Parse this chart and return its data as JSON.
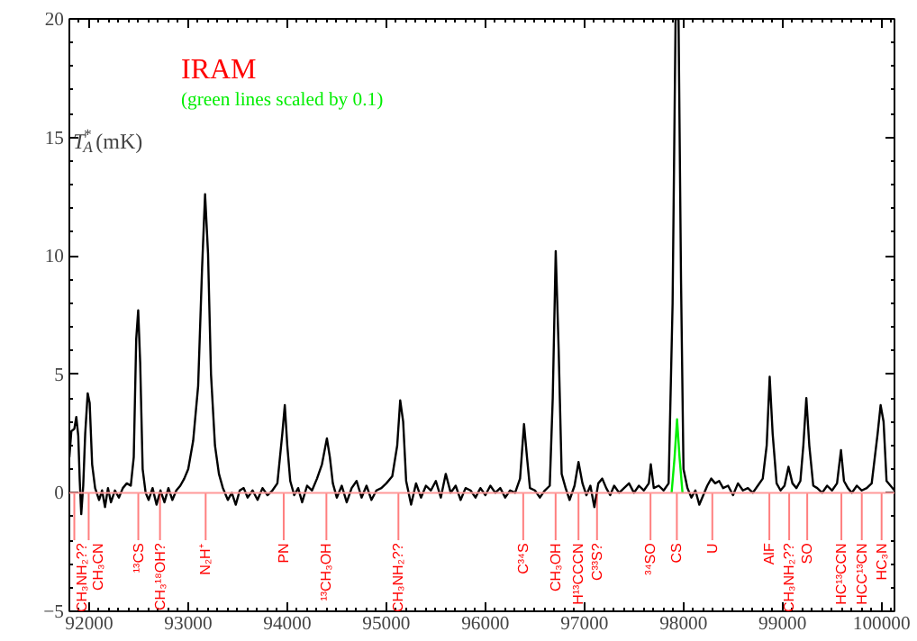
{
  "chart_data": {
    "type": "line",
    "ylabel": "T$_{A}$$^{*}$ (mK)",
    "annotations": [
      "IRAM",
      "(green lines scaled by 0.1)"
    ],
    "xlim": [
      91800,
      100130
    ],
    "ylim": [
      -5,
      20
    ],
    "xticks": [
      92000,
      93000,
      94000,
      95000,
      96000,
      97000,
      98000,
      99000,
      100000
    ],
    "yticks": [
      -5,
      0,
      5,
      10,
      15,
      20
    ],
    "grid": false,
    "marker": "none",
    "line_style": "solid",
    "series": [
      {
        "color": "#000000",
        "x": [
          91800,
          91820,
          91850,
          91870,
          91890,
          91905,
          91920,
          91940,
          91960,
          91985,
          92005,
          92030,
          92060,
          92100,
          92130,
          92160,
          92190,
          92220,
          92260,
          92300,
          92340,
          92380,
          92420,
          92450,
          92475,
          92495,
          92515,
          92540,
          92570,
          92600,
          92640,
          92680,
          92720,
          92760,
          92800,
          92840,
          92880,
          92920,
          92960,
          93000,
          93050,
          93100,
          93140,
          93170,
          93200,
          93230,
          93270,
          93310,
          93350,
          93400,
          93440,
          93480,
          93520,
          93560,
          93600,
          93650,
          93700,
          93750,
          93800,
          93850,
          93900,
          93950,
          93975,
          94000,
          94030,
          94070,
          94110,
          94150,
          94200,
          94250,
          94300,
          94350,
          94400,
          94430,
          94460,
          94500,
          94550,
          94600,
          94650,
          94700,
          94750,
          94800,
          94850,
          94900,
          94950,
          95000,
          95060,
          95110,
          95140,
          95170,
          95200,
          95250,
          95300,
          95350,
          95400,
          95450,
          95500,
          95550,
          95600,
          95650,
          95700,
          95750,
          95800,
          95850,
          95900,
          95950,
          96000,
          96050,
          96100,
          96150,
          96200,
          96250,
          96300,
          96350,
          96390,
          96420,
          96450,
          96500,
          96550,
          96600,
          96650,
          96680,
          96710,
          96740,
          96770,
          96810,
          96850,
          96900,
          96940,
          96980,
          97020,
          97060,
          97100,
          97140,
          97180,
          97220,
          97260,
          97300,
          97350,
          97400,
          97450,
          97500,
          97550,
          97600,
          97650,
          97670,
          97700,
          97750,
          97800,
          97850,
          97890,
          97920,
          97950,
          97975,
          98000,
          98040,
          98080,
          98120,
          98160,
          98200,
          98240,
          98280,
          98320,
          98360,
          98400,
          98450,
          98500,
          98550,
          98600,
          98650,
          98700,
          98750,
          98800,
          98840,
          98870,
          98900,
          98940,
          98980,
          99020,
          99060,
          99100,
          99140,
          99180,
          99210,
          99240,
          99270,
          99310,
          99350,
          99400,
          99450,
          99500,
          99550,
          99590,
          99620,
          99660,
          99700,
          99750,
          99800,
          99850,
          99900,
          99960,
          99990,
          100020,
          100050,
          100090,
          100130
        ],
        "values": [
          1.5,
          2.6,
          2.7,
          3.2,
          2.4,
          0.5,
          -0.9,
          0.3,
          2.5,
          4.2,
          3.8,
          1.2,
          0.2,
          -0.3,
          0.1,
          -0.6,
          0.2,
          -0.4,
          0.1,
          -0.2,
          0.2,
          0.4,
          0.3,
          1.5,
          6.5,
          7.7,
          5.5,
          1.0,
          0.0,
          -0.3,
          0.2,
          -0.5,
          0.1,
          -0.4,
          0.2,
          -0.3,
          0.1,
          0.3,
          0.6,
          1.0,
          2.2,
          4.5,
          9.5,
          12.6,
          10.1,
          5.0,
          2.0,
          0.8,
          0.2,
          -0.3,
          0.0,
          -0.5,
          0.1,
          0.2,
          -0.2,
          0.1,
          -0.3,
          0.2,
          -0.1,
          0.1,
          0.4,
          2.5,
          3.7,
          2.0,
          0.5,
          -0.1,
          0.2,
          -0.4,
          0.3,
          0.1,
          0.6,
          1.2,
          2.3,
          1.5,
          0.4,
          -0.2,
          0.3,
          -0.4,
          0.2,
          0.5,
          -0.2,
          0.3,
          -0.3,
          0.1,
          0.2,
          0.4,
          0.7,
          2.0,
          3.9,
          3.0,
          0.5,
          -0.5,
          0.4,
          -0.2,
          0.3,
          0.1,
          0.5,
          -0.2,
          0.8,
          0.0,
          0.3,
          -0.3,
          0.2,
          0.1,
          -0.2,
          0.2,
          -0.1,
          0.3,
          0.0,
          0.2,
          -0.2,
          0.1,
          0.0,
          0.6,
          2.9,
          1.5,
          0.2,
          0.1,
          -0.2,
          0.1,
          0.3,
          4.0,
          10.2,
          6.0,
          0.8,
          0.2,
          -0.3,
          0.3,
          1.3,
          0.4,
          -0.1,
          0.3,
          -0.6,
          0.4,
          0.6,
          0.2,
          -0.1,
          0.3,
          0.0,
          0.2,
          0.4,
          0.0,
          0.3,
          0.1,
          0.4,
          1.2,
          0.2,
          0.3,
          0.1,
          0.4,
          8.0,
          20,
          20,
          9.0,
          1.0,
          0.2,
          -0.2,
          0.1,
          -0.5,
          -0.1,
          0.3,
          0.6,
          0.4,
          0.5,
          0.2,
          0.3,
          -0.1,
          0.4,
          0.1,
          0.2,
          0.0,
          0.3,
          0.6,
          2.0,
          4.9,
          2.5,
          0.4,
          0.1,
          0.3,
          1.1,
          0.4,
          0.2,
          0.5,
          2.0,
          4.0,
          2.0,
          0.3,
          0.2,
          0.0,
          0.3,
          0.1,
          0.4,
          1.8,
          0.5,
          0.2,
          0.0,
          0.3,
          0.1,
          0.2,
          0.4,
          2.5,
          3.7,
          3.0,
          0.5,
          0.3,
          0.1
        ]
      },
      {
        "color": "#00ee00",
        "x": [
          97880,
          97910,
          97935,
          97960,
          97990
        ],
        "values": [
          0,
          1.5,
          3.1,
          1.5,
          0
        ]
      }
    ],
    "ref_lines": [
      {
        "axis": "y",
        "value": 0,
        "color": "#ff9999"
      },
      {
        "axis": "x",
        "value": 91850,
        "label": "CH₃NH₂??",
        "color": "#ff0000"
      },
      {
        "axis": "x",
        "value": 91995,
        "label": "CH₃CN",
        "color": "#ff0000"
      },
      {
        "axis": "x",
        "value": 92496,
        "label": "¹³CS",
        "color": "#ff0000"
      },
      {
        "axis": "x",
        "value": 92715,
        "label": "CH₃¹⁸OH?",
        "color": "#ff0000"
      },
      {
        "axis": "x",
        "value": 93176,
        "label": "N₂H⁺",
        "color": "#ff0000"
      },
      {
        "axis": "x",
        "value": 93964,
        "label": "PN",
        "color": "#ff0000"
      },
      {
        "axis": "x",
        "value": 94395,
        "label": "¹³CH₃OH",
        "color": "#ff0000"
      },
      {
        "axis": "x",
        "value": 95122,
        "label": "CH₃NH₂??",
        "color": "#ff0000"
      },
      {
        "axis": "x",
        "value": 96382,
        "label": "C³⁴S",
        "color": "#ff0000"
      },
      {
        "axis": "x",
        "value": 96709,
        "label": "CH₃OH",
        "color": "#ff0000"
      },
      {
        "axis": "x",
        "value": 96940,
        "label": "H¹³CCCN",
        "color": "#ff0000"
      },
      {
        "axis": "x",
        "value": 97127,
        "label": "C³³S?",
        "color": "#ff0000"
      },
      {
        "axis": "x",
        "value": 97667,
        "label": "³⁴SO",
        "color": "#ff0000"
      },
      {
        "axis": "x",
        "value": 97933,
        "label": "CS",
        "color": "#ff0000"
      },
      {
        "axis": "x",
        "value": 98291,
        "label": "U",
        "color": "#ff0000"
      },
      {
        "axis": "x",
        "value": 98867,
        "label": "AlF",
        "color": "#ff0000"
      },
      {
        "axis": "x",
        "value": 99067,
        "label": "CH₃NH₂??",
        "color": "#ff0000"
      },
      {
        "axis": "x",
        "value": 99249,
        "label": "SO",
        "color": "#ff0000"
      },
      {
        "axis": "x",
        "value": 99594,
        "label": "HC¹³CCN",
        "color": "#ff0000"
      },
      {
        "axis": "x",
        "value": 99800,
        "label": "HCC¹³CN",
        "color": "#ff0000"
      },
      {
        "axis": "x",
        "value": 100000,
        "label": "HC₃N",
        "color": "#ff0000"
      }
    ]
  }
}
